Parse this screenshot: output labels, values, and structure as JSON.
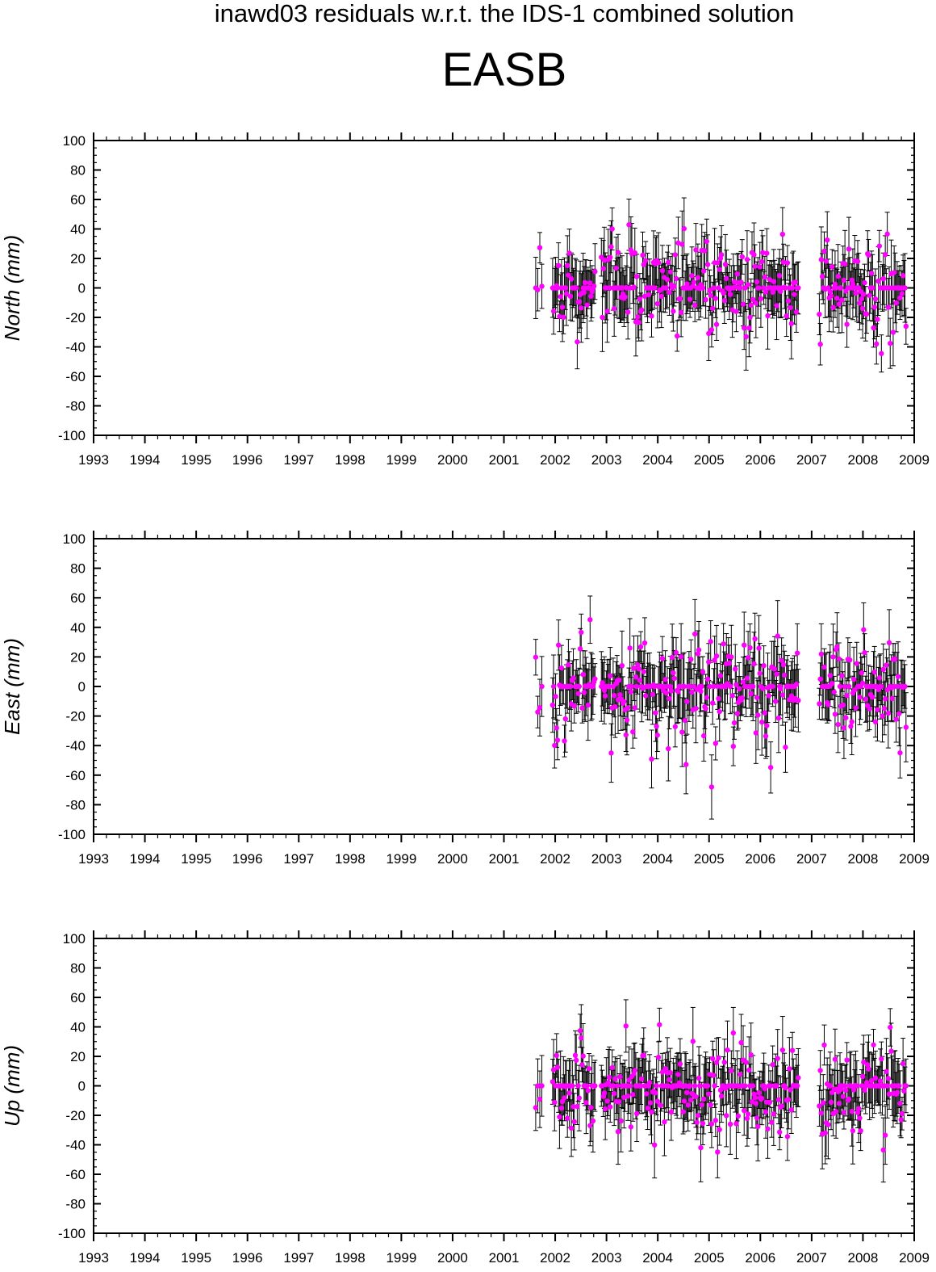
{
  "header": {
    "title": "inawd03 residuals w.r.t. the IDS-1 combined solution",
    "station": "EASB"
  },
  "colors": {
    "point": "#ff00ff",
    "errorbar": "#000000",
    "axis": "#000000"
  },
  "chart_data": [
    {
      "type": "scatter",
      "ylabel": "North (mm)",
      "ylim": [
        -100,
        100
      ],
      "xlim": [
        1993,
        2009
      ],
      "x_ticks": [
        "1993",
        "1994",
        "1995",
        "1996",
        "1997",
        "1998",
        "1999",
        "2000",
        "2001",
        "2002",
        "2003",
        "2004",
        "2005",
        "2006",
        "2007",
        "2008",
        "2009"
      ],
      "y_ticks": [
        "100",
        "80",
        "60",
        "40",
        "20",
        "0",
        "-20",
        "-40",
        "-60",
        "-80",
        "-100"
      ],
      "series": [
        {
          "x": [],
          "y": [],
          "err": []
        }
      ],
      "error_bars": true,
      "grid": false
    },
    {
      "type": "scatter",
      "ylabel": "East (mm)",
      "ylim": [
        -100,
        100
      ],
      "xlim": [
        1993,
        2009
      ],
      "x_ticks": [
        "1993",
        "1994",
        "1995",
        "1996",
        "1997",
        "1998",
        "1999",
        "2000",
        "2001",
        "2002",
        "2003",
        "2004",
        "2005",
        "2006",
        "2007",
        "2008",
        "2009"
      ],
      "y_ticks": [
        "100",
        "80",
        "60",
        "40",
        "20",
        "0",
        "-20",
        "-40",
        "-60",
        "-80",
        "-100"
      ],
      "series": [
        {
          "x": [],
          "y": [],
          "err": []
        }
      ],
      "error_bars": true,
      "grid": false
    },
    {
      "type": "scatter",
      "ylabel": "Up (mm)",
      "ylim": [
        -100,
        100
      ],
      "xlim": [
        1993,
        2009
      ],
      "x_ticks": [
        "1993",
        "1994",
        "1995",
        "1996",
        "1997",
        "1998",
        "1999",
        "2000",
        "2001",
        "2002",
        "2003",
        "2004",
        "2005",
        "2006",
        "2007",
        "2008",
        "2009"
      ],
      "y_ticks": [
        "100",
        "80",
        "60",
        "40",
        "20",
        "0",
        "-20",
        "-40",
        "-60",
        "-80",
        "-100"
      ],
      "series": [
        {
          "x": [],
          "y": [],
          "err": []
        }
      ],
      "error_bars": true,
      "grid": false
    }
  ]
}
